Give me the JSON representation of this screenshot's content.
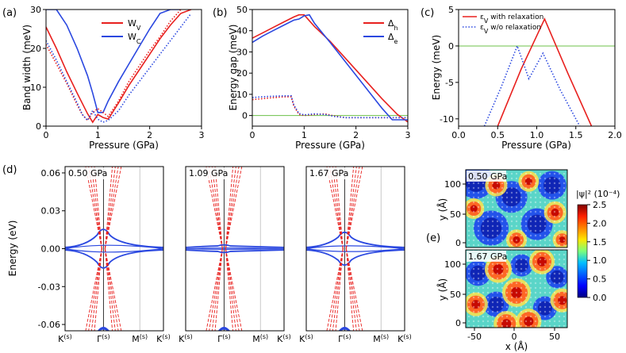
{
  "colors": {
    "red": "#e8201e",
    "blue": "#2b48e0",
    "green": "#6cc04a",
    "grid": "#999999"
  },
  "chart_data": [
    {
      "panel": "(a)",
      "type": "line",
      "xlabel": "Pressure (GPa)",
      "ylabel": "Band width (meV)",
      "xlim": [
        0,
        3
      ],
      "ylim": [
        0,
        30
      ],
      "xticks": [
        "0",
        "1",
        "2",
        "3"
      ],
      "yticks": [
        "0",
        "10",
        "20",
        "30"
      ],
      "legend": [
        {
          "label": "W",
          "sub": "V",
          "color": "red"
        },
        {
          "label": "W",
          "sub": "C",
          "color": "blue"
        }
      ],
      "series": [
        {
          "name": "W_V",
          "style": "solid",
          "color": "red",
          "x": [
            0,
            0.2,
            0.4,
            0.6,
            0.8,
            0.9,
            1.0,
            1.1,
            1.2,
            1.4,
            1.6,
            1.8,
            2.0,
            2.2,
            2.4,
            2.6,
            2.8
          ],
          "y": [
            25.5,
            20,
            14,
            8.5,
            3.2,
            1.0,
            3.0,
            2.2,
            1.8,
            6.0,
            10.5,
            14.5,
            18.5,
            22.5,
            26,
            29,
            30
          ]
        },
        {
          "name": "W_C",
          "style": "solid",
          "color": "blue",
          "x": [
            0,
            0.2,
            0.4,
            0.6,
            0.8,
            0.9,
            1.0,
            1.1,
            1.2,
            1.4,
            1.6,
            1.8,
            2.0,
            2.2,
            2.4,
            2.6
          ],
          "y": [
            30,
            30,
            26,
            20,
            13,
            8.5,
            3.5,
            3.5,
            6.5,
            11.5,
            16,
            20.5,
            25,
            29,
            30,
            30
          ]
        },
        {
          "name": "W_V (w/o relaxation)",
          "style": "dotted",
          "color": "red",
          "x": [
            0,
            0.2,
            0.4,
            0.6,
            0.7,
            0.8,
            0.9,
            1.0,
            1.1,
            1.2,
            1.4,
            1.6,
            1.8,
            2.0,
            2.2,
            2.4,
            2.6
          ],
          "y": [
            21,
            16,
            11,
            5.5,
            3.0,
            1.5,
            3.5,
            4.5,
            3.5,
            2.5,
            6.5,
            11.5,
            15.5,
            19.5,
            23,
            27,
            30
          ]
        },
        {
          "name": "W_C (w/o relaxation)",
          "style": "dotted",
          "color": "blue",
          "x": [
            0,
            0.2,
            0.4,
            0.6,
            0.7,
            0.8,
            0.9,
            1.0,
            1.1,
            1.2,
            1.4,
            1.6,
            1.8,
            2.0,
            2.2,
            2.4,
            2.6,
            2.8
          ],
          "y": [
            22,
            17,
            11.5,
            6.0,
            3.0,
            1.5,
            4.0,
            1.8,
            1.0,
            1.5,
            4.0,
            8.0,
            11.5,
            15.0,
            18.5,
            22,
            25.5,
            29
          ]
        }
      ]
    },
    {
      "panel": "(b)",
      "type": "line",
      "xlabel": "Pressure (GPa)",
      "ylabel": "Energy gap (meV)",
      "xlim": [
        0,
        3
      ],
      "ylim": [
        -5,
        50
      ],
      "xticks": [
        "0",
        "1",
        "2",
        "3"
      ],
      "yticks": [
        "0",
        "10",
        "20",
        "30",
        "40",
        "50"
      ],
      "hline": 0,
      "legend": [
        {
          "label": "Δ",
          "sub": "h",
          "color": "red"
        },
        {
          "label": "Δ",
          "sub": "e",
          "color": "blue"
        }
      ],
      "series": [
        {
          "name": "Δh",
          "style": "solid",
          "color": "red",
          "x": [
            0,
            0.2,
            0.4,
            0.6,
            0.8,
            0.9,
            1.0,
            1.2,
            1.5,
            2.0,
            2.5,
            2.8,
            3.0
          ],
          "y": [
            36.5,
            39,
            41.5,
            44,
            46.5,
            47.5,
            47.5,
            42,
            35,
            21.5,
            8,
            0.5,
            -3
          ]
        },
        {
          "name": "Δe",
          "style": "solid",
          "color": "blue",
          "x": [
            0,
            0.2,
            0.4,
            0.6,
            0.8,
            0.9,
            1.0,
            1.1,
            1.2,
            1.5,
            2.0,
            2.5,
            2.7,
            3.0
          ],
          "y": [
            34.5,
            37.5,
            40,
            42.5,
            45,
            45.5,
            47,
            47.5,
            43.5,
            34.5,
            19,
            3.5,
            -2,
            -2
          ]
        },
        {
          "name": "Δh (w/o relaxation)",
          "style": "dotted",
          "color": "red",
          "x": [
            0,
            0.3,
            0.6,
            0.75,
            0.8,
            0.9,
            1.0,
            1.2,
            1.4,
            1.6,
            1.8,
            2.0,
            3.0
          ],
          "y": [
            7.5,
            8.2,
            8.8,
            8.8,
            4.5,
            0.5,
            0,
            0.5,
            0.8,
            -0.3,
            -1,
            -1,
            -1
          ]
        },
        {
          "name": "Δe (w/o relaxation)",
          "style": "dotted",
          "color": "blue",
          "x": [
            0,
            0.3,
            0.6,
            0.75,
            0.8,
            0.9,
            1.0,
            1.2,
            1.4,
            1.6,
            1.8,
            2.0,
            3.0
          ],
          "y": [
            8.5,
            9.0,
            9.3,
            9.3,
            5.0,
            1.0,
            0.3,
            0.8,
            0.5,
            -0.5,
            -1,
            -1,
            -1
          ]
        }
      ]
    },
    {
      "panel": "(c)",
      "type": "line",
      "xlabel": "Pressure (GPa)",
      "ylabel": "Energy (meV)",
      "xlim": [
        0,
        2
      ],
      "ylim": [
        -11,
        5
      ],
      "xticks": [
        "0.0",
        "0.5",
        "1.0",
        "1.5",
        "2.0"
      ],
      "yticks": [
        "-10",
        "-5",
        "0",
        "5"
      ],
      "hline": 0,
      "legend": [
        {
          "label": "ε",
          "sub": "V",
          "tail": " with relaxation",
          "color": "red",
          "style": "solid"
        },
        {
          "label": "ε",
          "sub": "V",
          "tail": " w/o relaxation",
          "color": "blue",
          "style": "dotted"
        }
      ],
      "series": [
        {
          "name": "εV with relaxation",
          "style": "solid",
          "color": "red",
          "x": [
            0.5,
            0.8,
            1.1,
            1.4,
            1.7
          ],
          "y": [
            -11,
            -3.2,
            3.7,
            -3.8,
            -11
          ]
        },
        {
          "name": "εV w/o relaxation",
          "style": "dotted",
          "color": "blue",
          "x": [
            0.33,
            0.55,
            0.75,
            0.9,
            1.08,
            1.3,
            1.55
          ],
          "y": [
            -11,
            -5.5,
            0,
            -4.5,
            -1.0,
            -6.0,
            -11
          ]
        }
      ]
    },
    {
      "panel": "(d)",
      "type": "line",
      "ylabel": "Energy (eV)",
      "ylim": [
        -0.065,
        0.065
      ],
      "yticks": [
        "0.06",
        "0.03",
        "0.00",
        "-0.03",
        "-0.06"
      ],
      "subplots": [
        {
          "tag": "0.50 GPa",
          "scale": 1.0,
          "xticks": [
            "K(s)",
            "Γ(s)",
            "M(s)",
            "K(s)"
          ]
        },
        {
          "tag": "1.09 GPa",
          "scale": 0.2,
          "xticks": [
            "K(s)",
            "Γ(s)",
            "M(s)",
            "K(s)"
          ]
        },
        {
          "tag": "1.67 GPa",
          "scale": 0.85,
          "xticks": [
            "K(s)",
            "Γ(s)",
            "M(s)",
            "K(s)"
          ]
        }
      ]
    },
    {
      "panel": "(e)",
      "type": "heatmap",
      "xlabel": "x (Å)",
      "ylabel": "y (Å)",
      "xticks": [
        "-50",
        "0",
        "50"
      ],
      "yticks": [
        "100",
        "50",
        "0"
      ],
      "colorbar": {
        "label": "|ψ|² (10⁻⁴)",
        "ticks": [
          "2.5",
          "2.0",
          "1.5",
          "1.0",
          "0.5",
          "0.0"
        ],
        "range": [
          0,
          2.5
        ]
      },
      "maps": [
        {
          "tag": "0.50 GPa"
        },
        {
          "tag": "1.67 GPa"
        }
      ]
    }
  ],
  "panel_labels": [
    "(a)",
    "(b)",
    "(c)",
    "(d)",
    "(e)"
  ]
}
